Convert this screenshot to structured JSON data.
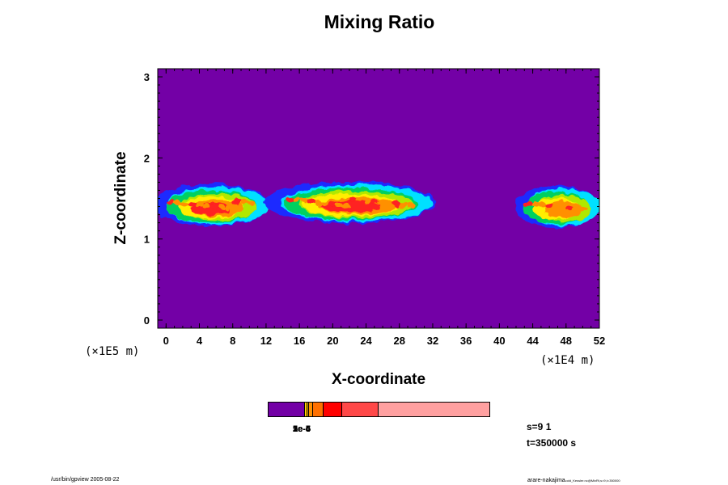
{
  "chart_data": {
    "type": "heatmap",
    "title": "Mixing Ratio",
    "xlabel": "X-coordinate",
    "ylabel": "Z-coordinate",
    "x_scale_label": "(×1E4 m)",
    "y_scale_label": "(×1E5 m)",
    "xlim": [
      -1,
      52
    ],
    "ylim": [
      -0.1,
      3.1
    ],
    "x_ticks": [
      0,
      4,
      8,
      12,
      16,
      20,
      24,
      28,
      32,
      36,
      40,
      44,
      48,
      52
    ],
    "y_ticks": [
      0,
      1,
      2,
      3
    ],
    "background_value": "below 1e-6",
    "cloud_bands": [
      {
        "x_start": -1,
        "x_end": 12.5,
        "z_center": 1.42,
        "max_level": "red"
      },
      {
        "x_start": 12.5,
        "x_end": 32.5,
        "z_center": 1.45,
        "max_level": "red"
      },
      {
        "x_start": 42.5,
        "x_end": 52,
        "z_center": 1.4,
        "max_level": "orange"
      }
    ],
    "colorbar": {
      "segments": [
        {
          "color": "#7300a6",
          "frac": 0.165
        },
        {
          "color": "#ffd000",
          "frac": 0.01
        },
        {
          "color": "#ffb000",
          "frac": 0.01
        },
        {
          "color": "#ff9000",
          "frac": 0.015
        },
        {
          "color": "#ff7000",
          "frac": 0.05
        },
        {
          "color": "#ff0000",
          "frac": 0.085
        },
        {
          "color": "#ff4848",
          "frac": 0.165
        },
        {
          "color": "#ffa0a0",
          "frac": 0.5
        }
      ],
      "labels": [
        "1e-6",
        "2e-6",
        "5e-6",
        "1e-5",
        "2e-5",
        "5e-5",
        "1e-4"
      ]
    },
    "palette": {
      "background": "#7300a6",
      "level_blue": "#1e2aff",
      "level_cyan": "#00e0ff",
      "level_green": "#00d060",
      "level_yellowgreen": "#b0e800",
      "level_yellow": "#ffee00",
      "level_orange": "#ff9000",
      "level_red": "#ff2020"
    }
  },
  "info": {
    "step": "s=9 1",
    "time": "t=350000 s"
  },
  "footer": {
    "left": "/usr/bin/gpview 2005-08-22",
    "right_main": "arare-nakajima",
    "right_small": "cold_Kessler.nc@MixRt,s=9,t=350000"
  }
}
